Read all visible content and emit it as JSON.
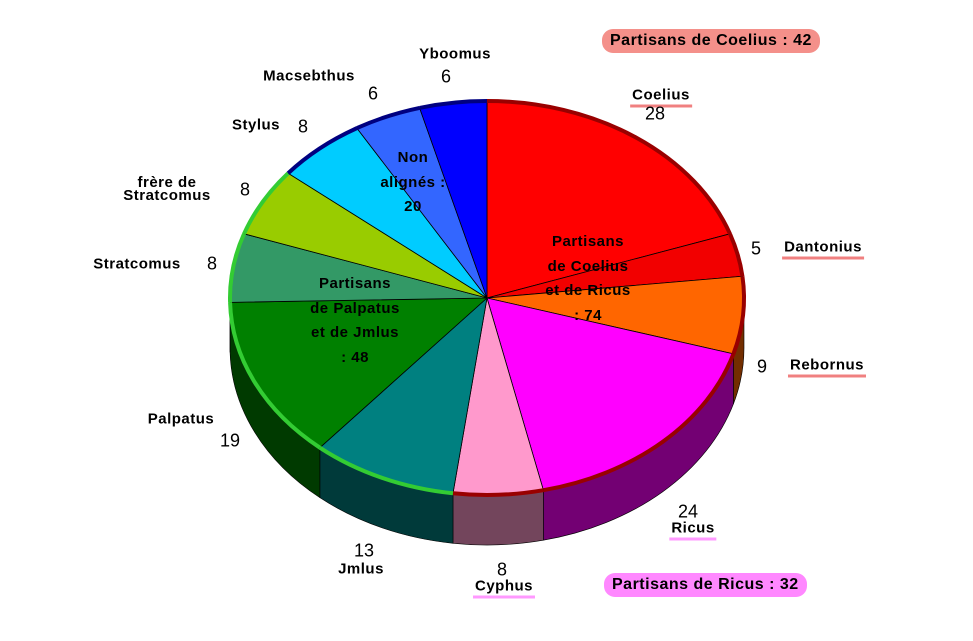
{
  "chart_data": {
    "type": "pie3d",
    "categories": [
      "Coelius",
      "Dantonius",
      "Rebornus",
      "Ricus",
      "Cyphus",
      "Jmlus",
      "Palpatus",
      "Stratcomus",
      "frère de Stratcomus",
      "Stylus",
      "Macsebthus",
      "Yboomus"
    ],
    "values": [
      28,
      5,
      9,
      24,
      8,
      13,
      19,
      8,
      8,
      8,
      6,
      6
    ],
    "colors": [
      "#ff0000",
      "#f20000",
      "#ff6600",
      "#ff00ff",
      "#ff99cc",
      "#008080",
      "#008000",
      "#339966",
      "#99cc00",
      "#00ccff",
      "#3366ff",
      "#0000ff"
    ],
    "edge_colors": [
      "#990000",
      "#990000",
      "#990000",
      "#990000",
      "#990000",
      "#33cc33",
      "#33cc33",
      "#33cc33",
      "#33cc33",
      "#000080",
      "#000080",
      "#000080"
    ],
    "groups": [
      {
        "label": "Partisans de Coelius et de Ricus : 74"
      },
      {
        "label": "Partisans de Palpatus et de Jmlus : 48"
      },
      {
        "label": "Non alignés : 20"
      }
    ],
    "callouts": [
      "Partisans de Coelius : 42",
      "Partisans de Ricus : 32"
    ]
  }
}
